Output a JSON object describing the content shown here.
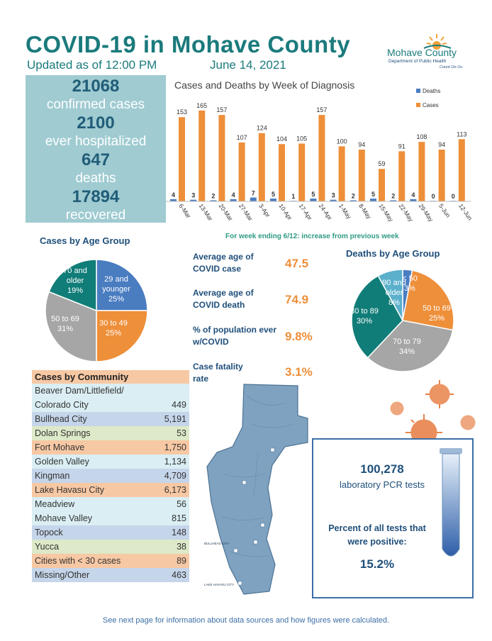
{
  "header": {
    "title": "COVID-19 in Mohave County",
    "updated": "Updated as of 12:00 PM",
    "date": "June 14, 2021"
  },
  "logo": {
    "name": "Mohave County",
    "dept": "Department of Public Health",
    "tagline": "Count On Us."
  },
  "summary": {
    "confirmed": "21068",
    "confirmed_label": "confirmed cases",
    "hospitalized": "2100",
    "hospitalized_label": "ever hospitalized",
    "deaths": "647",
    "deaths_label": "deaths",
    "recovered": "17894",
    "recovered_label": "recovered"
  },
  "week_note": "For week ending 6/12: increase from previous week",
  "stats": [
    {
      "label": "Average age of COVID case",
      "value": "47.5"
    },
    {
      "label": "Average age of COVID death",
      "value": "74.9"
    },
    {
      "label": "% of population ever w/COVID",
      "value": "9.8%"
    },
    {
      "label": "Case fatality rate",
      "value": "3.1%"
    }
  ],
  "community": {
    "header": "Cases by Community",
    "rows": [
      {
        "name": "Beaver Dam/Littlefield/",
        "value": ""
      },
      {
        "name": "Colorado City",
        "value": "449"
      },
      {
        "name": "Bullhead City",
        "value": "5,191"
      },
      {
        "name": "Dolan Springs",
        "value": "53"
      },
      {
        "name": "Fort Mohave",
        "value": "1,750"
      },
      {
        "name": "Golden Valley",
        "value": "1,134"
      },
      {
        "name": "Kingman",
        "value": "4,709"
      },
      {
        "name": "Lake Havasu City",
        "value": "6,173"
      },
      {
        "name": "Meadview",
        "value": "56"
      },
      {
        "name": "Mohave Valley",
        "value": "815"
      },
      {
        "name": "Topock",
        "value": "148"
      },
      {
        "name": "Yucca",
        "value": "38"
      },
      {
        "name": "Cities with < 30 cases",
        "value": "89"
      },
      {
        "name": "Missing/Other",
        "value": "463"
      }
    ]
  },
  "map": {
    "labels": [
      "BULLHEAD CITY",
      "LAKE HAVASU CITY"
    ]
  },
  "tests": {
    "count": "100,278",
    "count_label": "laboratory PCR tests",
    "positive_label": "Percent of all tests that were positive:",
    "positive_value": "15.2%"
  },
  "footer": "See next page for information about data sources and how figures were calculated.",
  "colors": {
    "teal": "#1b7a7c",
    "orange": "#ee8f3a",
    "blue": "#4a7cc0",
    "navy": "#1f4f7a"
  },
  "chart_data": [
    {
      "type": "bar",
      "title": "Cases and Deaths by Week of Diagnosis",
      "categories": [
        "6-Mar",
        "13-Mar",
        "20-Mar",
        "27-Mar",
        "3-Apr",
        "10-Apr",
        "17-Apr",
        "24-Apr",
        "1-May",
        "8-May",
        "15-May",
        "22-May",
        "29-May",
        "5-Jun",
        "12-Jun"
      ],
      "series": [
        {
          "name": "Deaths",
          "color": "#4a7cc0",
          "values": [
            4,
            3,
            2,
            4,
            7,
            5,
            1,
            5,
            3,
            2,
            5,
            2,
            4,
            0,
            0
          ]
        },
        {
          "name": "Cases",
          "color": "#ee8f3a",
          "values": [
            153,
            165,
            157,
            107,
            124,
            104,
            105,
            157,
            100,
            94,
            59,
            91,
            108,
            94,
            113
          ]
        }
      ],
      "ylim": [
        0,
        170
      ],
      "legend": "top-right",
      "grid": false
    },
    {
      "type": "pie",
      "title": "Cases by Age Group",
      "slices": [
        {
          "label": "29 and younger",
          "value": 25,
          "pct": "25%",
          "color": "#4a7cc0"
        },
        {
          "label": "30 to 49",
          "value": 25,
          "pct": "25%",
          "color": "#ee8f3a"
        },
        {
          "label": "50 to 69",
          "value": 31,
          "pct": "31%",
          "color": "#a6a6a6"
        },
        {
          "label": "70 and older",
          "value": 19,
          "pct": "19%",
          "color": "#117d78"
        }
      ]
    },
    {
      "type": "pie",
      "title": "Deaths by Age Group",
      "slices": [
        {
          "label": "< 50",
          "value": 3,
          "pct": "3%",
          "color": "#4a7cc0"
        },
        {
          "label": "50 to 69",
          "value": 25,
          "pct": "25%",
          "color": "#ee8f3a"
        },
        {
          "label": "70 to 79",
          "value": 34,
          "pct": "34%",
          "color": "#a6a6a6"
        },
        {
          "label": "80 to 89",
          "value": 30,
          "pct": "30%",
          "color": "#117d78"
        },
        {
          "label": "90 and older",
          "value": 8,
          "pct": "8%",
          "color": "#5bb0cc"
        }
      ]
    }
  ]
}
